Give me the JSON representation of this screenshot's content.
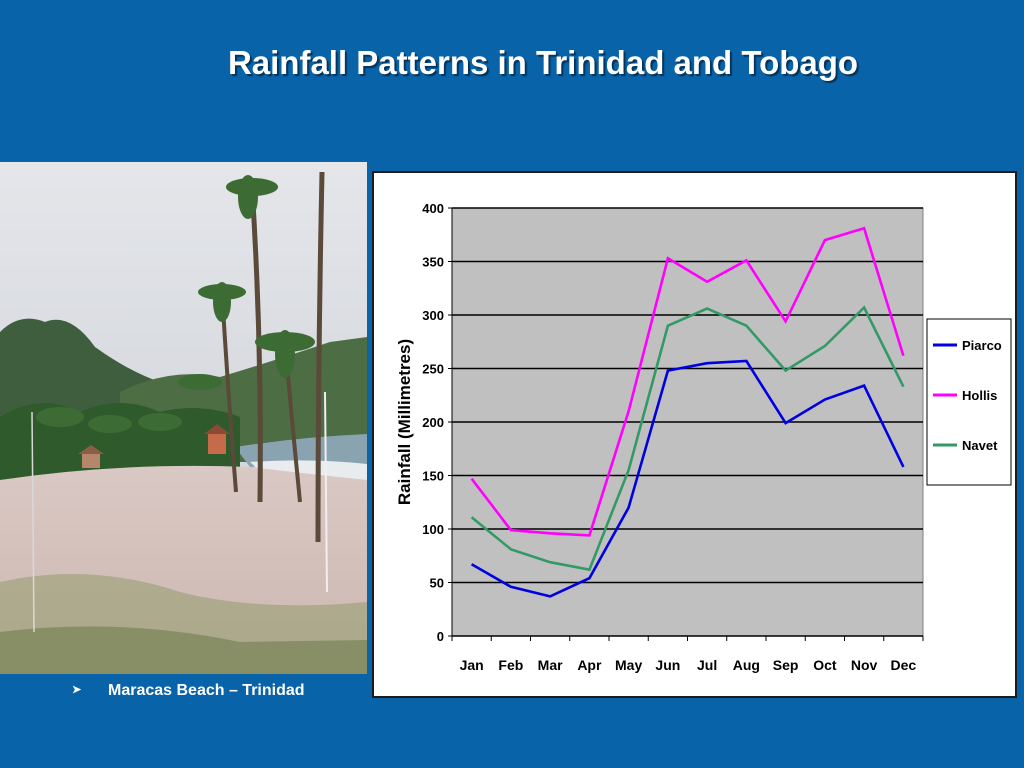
{
  "slide": {
    "title": "Rainfall Patterns in Trinidad and Tobago",
    "caption": "Maracas Beach – Trinidad",
    "caption_bullet_icon": "arrow-bullet-icon",
    "background_color": "#0863a8"
  },
  "photo": {
    "subject": "beach-with-palm-trees",
    "icon": "beach-photo"
  },
  "chart_data": {
    "type": "line",
    "categories": [
      "Jan",
      "Feb",
      "Mar",
      "Apr",
      "May",
      "Jun",
      "Jul",
      "Aug",
      "Sep",
      "Oct",
      "Nov",
      "Dec"
    ],
    "series": [
      {
        "name": "Piarco",
        "color": "#0000e0",
        "values": [
          67,
          46,
          37,
          54,
          120,
          248,
          255,
          257,
          199,
          221,
          234,
          158
        ]
      },
      {
        "name": "Hollis",
        "color": "#ff00ff",
        "values": [
          147,
          99,
          96,
          94,
          210,
          353,
          331,
          351,
          294,
          370,
          381,
          262
        ]
      },
      {
        "name": "Navet",
        "color": "#339966",
        "values": [
          111,
          81,
          69,
          62,
          155,
          290,
          306,
          290,
          248,
          271,
          307,
          233
        ]
      }
    ],
    "xlabel": "",
    "ylabel": "Rainfall (Millimetres)",
    "ylim": [
      0,
      400
    ],
    "yticks": [
      0,
      50,
      100,
      150,
      200,
      250,
      300,
      350,
      400
    ],
    "grid": true,
    "plot_background": "#c0c0c0",
    "legend_position": "right"
  }
}
